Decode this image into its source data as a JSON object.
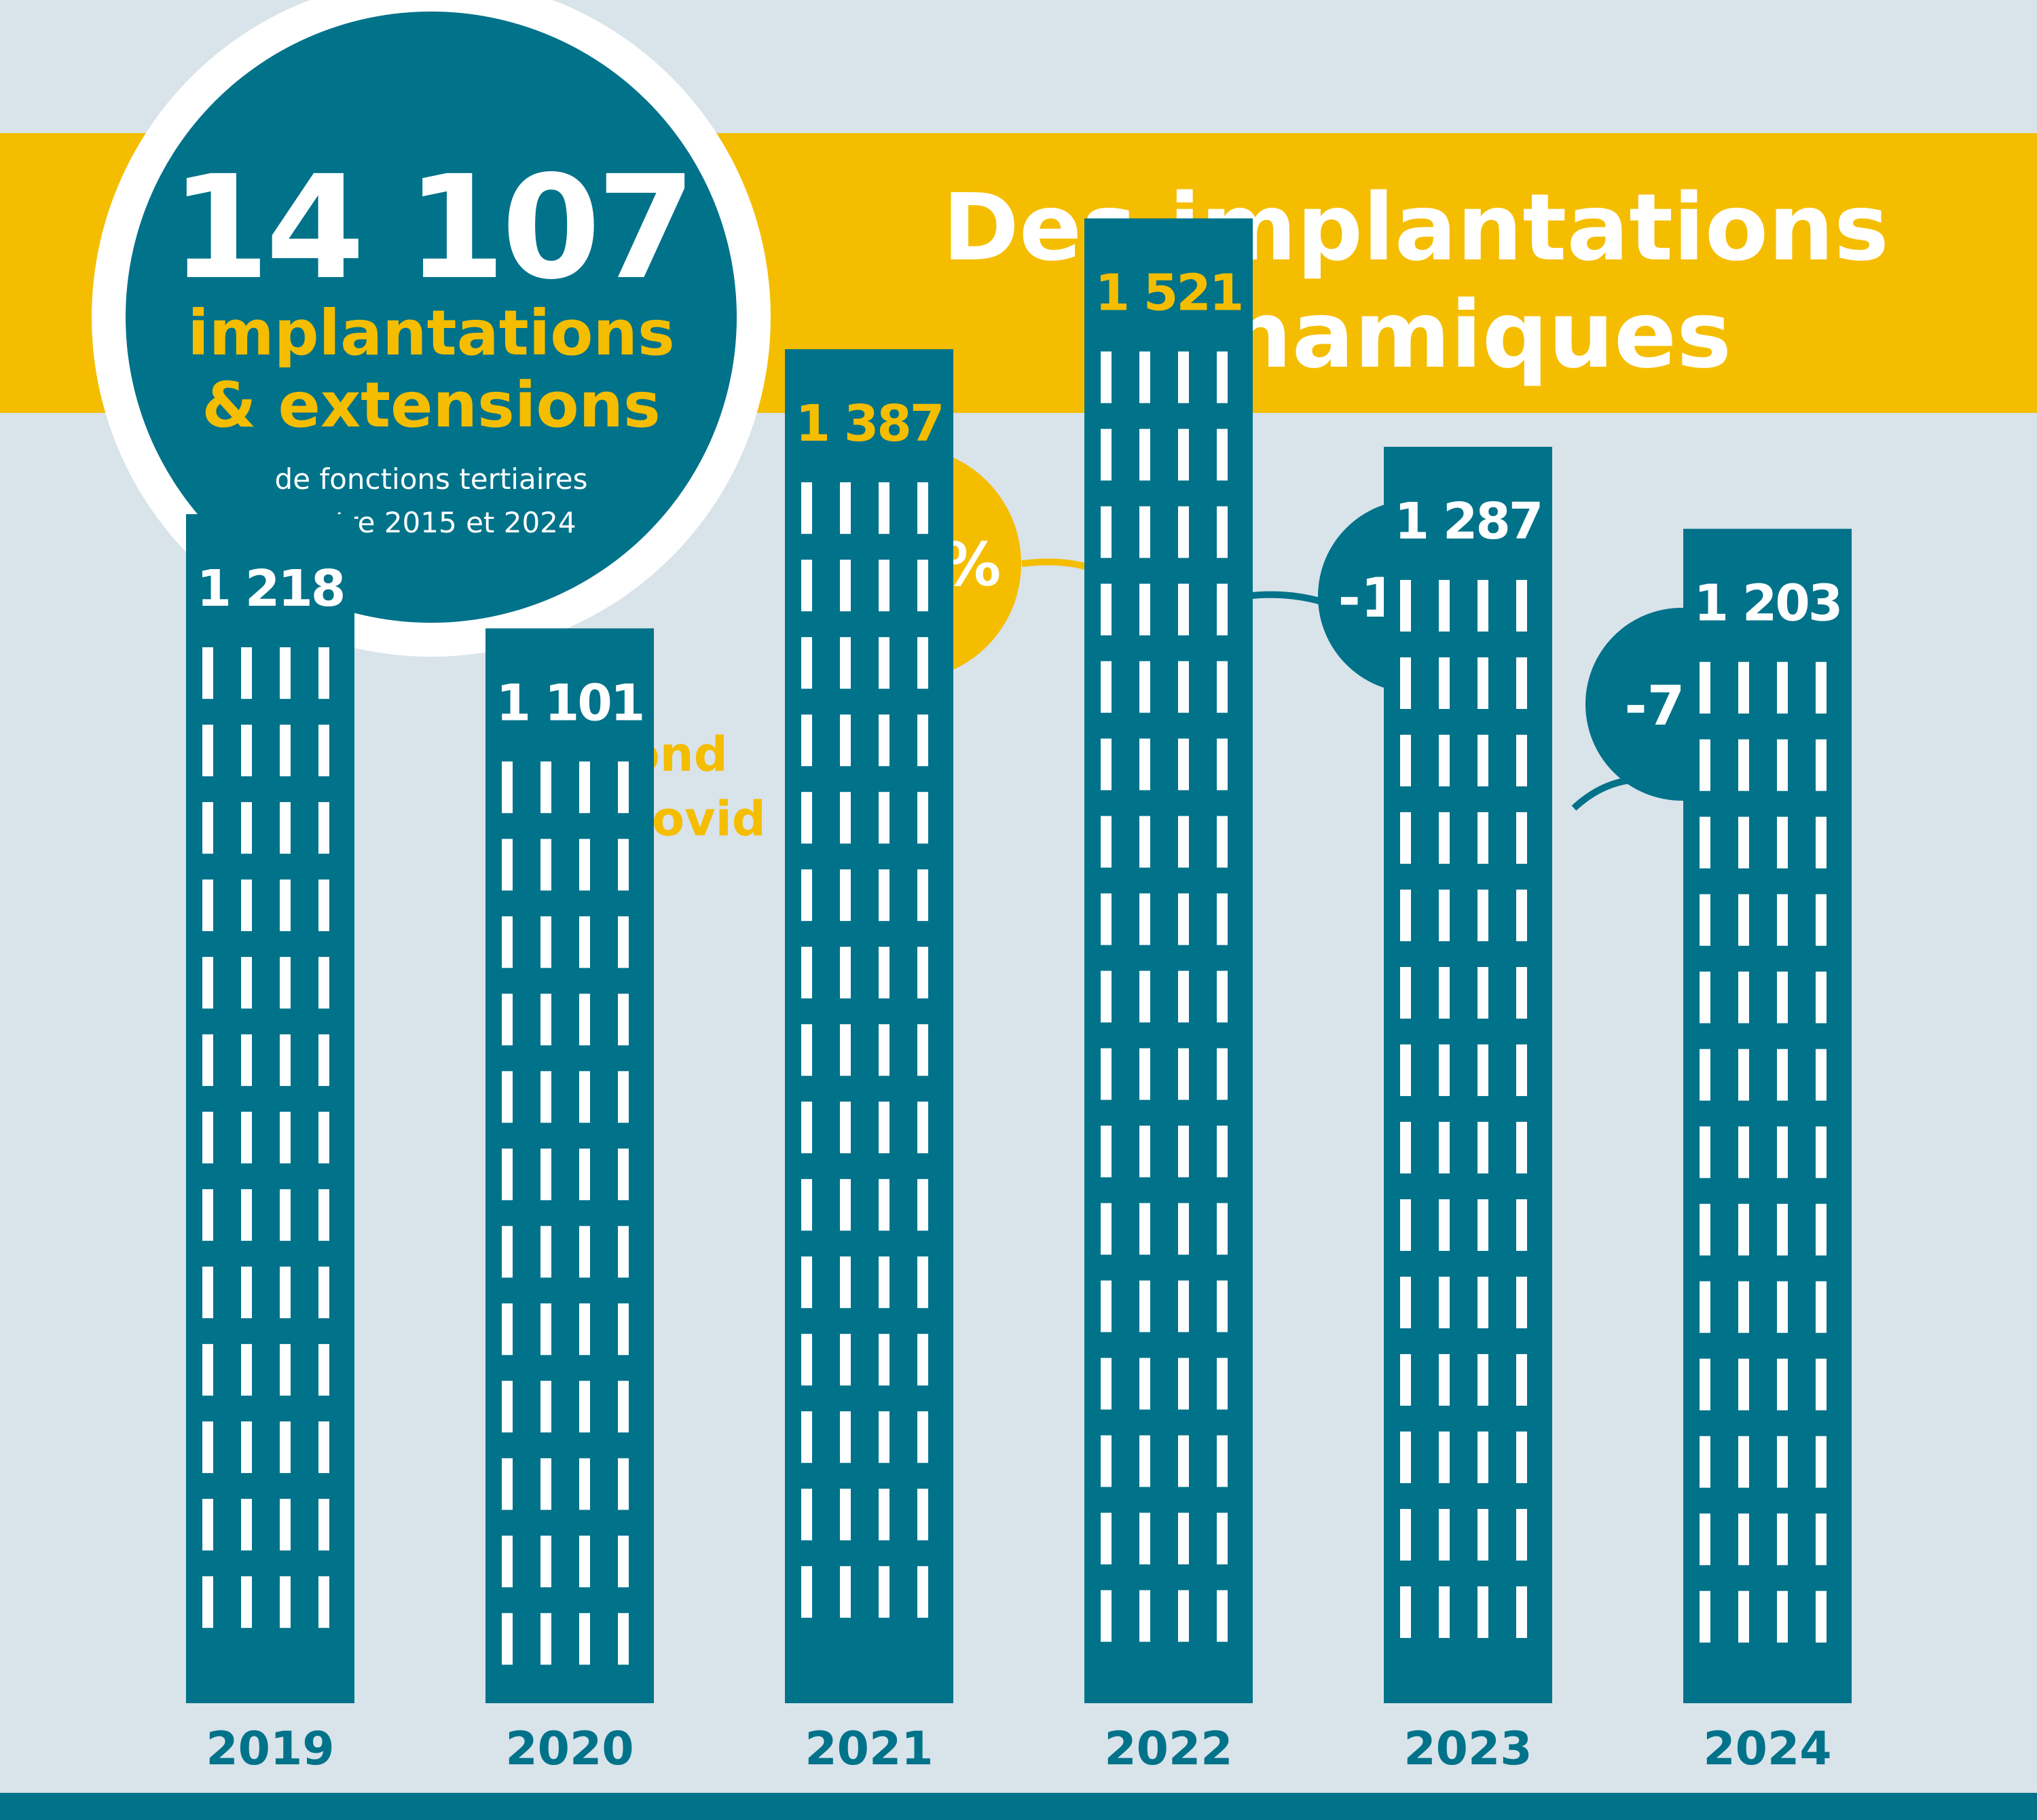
{
  "colors": {
    "background": "#d9e3ea",
    "teal": "#00728a",
    "yellow": "#f5bd00",
    "white": "#ffffff"
  },
  "headline": {
    "total": "14 107",
    "line1": "implantations",
    "line2": "& extensions",
    "sub1": "de fonctions tertiaires",
    "sub2": "entre 2015 et 2024"
  },
  "banner": {
    "title_line1": "Des implantations",
    "title_line2": "dynamiques"
  },
  "annotations": {
    "rebound_line1": "Rebond",
    "rebound_line2": "post-covid"
  },
  "chart_data": {
    "type": "bar",
    "title": "Des implantations dynamiques",
    "categories": [
      "2019",
      "2020",
      "2021",
      "2022",
      "2023",
      "2024"
    ],
    "values": [
      1218,
      1101,
      1387,
      1521,
      1287,
      1203
    ],
    "value_labels": [
      "1 218",
      "1 101",
      "1 387",
      "1 521",
      "1 287",
      "1 203"
    ],
    "changes": [
      {
        "label": "+10%",
        "from": "2021",
        "to": "2022",
        "color": "yellow"
      },
      {
        "label": "-15%",
        "from": "2022",
        "to": "2023",
        "color": "teal"
      },
      {
        "label": "-7%",
        "from": "2023",
        "to": "2024",
        "color": "teal"
      }
    ],
    "grid": false
  }
}
